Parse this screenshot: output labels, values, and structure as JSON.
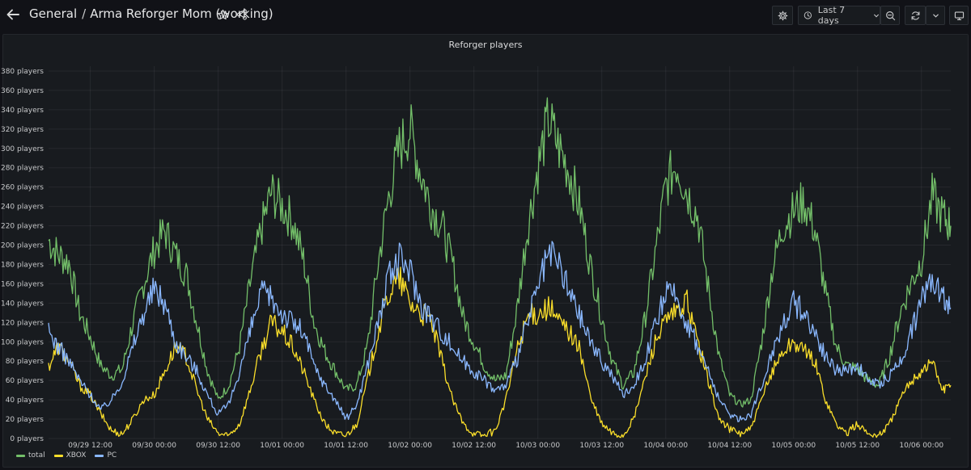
{
  "header": {
    "folder": "General",
    "separator": "/",
    "dashboard_title": "Arma Reforger Mom (working)",
    "time_range_label": "Last 7 days"
  },
  "icons": {
    "back": "arrow-left-icon",
    "star": "star-icon",
    "share": "share-icon",
    "settings": "gear-icon",
    "clock": "clock-icon",
    "time_dropdown": "chevron-down-icon",
    "zoom_out": "zoom-out-icon",
    "refresh": "refresh-icon",
    "refresh_dropdown": "chevron-down-icon",
    "tv_mode": "monitor-icon"
  },
  "colors": {
    "total": "#73bf69",
    "xbox": "#fade2a",
    "pc": "#8ab8ff"
  },
  "chart_data": {
    "type": "line",
    "title": "Reforger players",
    "y_unit": "players",
    "ylim": [
      0,
      385
    ],
    "y_ticks": [
      0,
      20,
      40,
      60,
      80,
      100,
      120,
      140,
      160,
      180,
      200,
      220,
      240,
      260,
      280,
      300,
      320,
      340,
      360,
      380
    ],
    "y_tick_labels": [
      "0 players",
      "20 players",
      "40 players",
      "60 players",
      "80 players",
      "100 players",
      "120 players",
      "140 players",
      "160 players",
      "180 players",
      "200 players",
      "220 players",
      "240 players",
      "260 players",
      "280 players",
      "300 players",
      "320 players",
      "340 players",
      "360 players",
      "380 players"
    ],
    "x_range": [
      "2023-09-29 04:10",
      "2023-10-06 05:30"
    ],
    "x_ticks": [
      "2023-09-29 12:00",
      "2023-09-30 00:00",
      "2023-09-30 12:00",
      "2023-10-01 00:00",
      "2023-10-01 12:00",
      "2023-10-02 00:00",
      "2023-10-02 12:00",
      "2023-10-03 00:00",
      "2023-10-03 12:00",
      "2023-10-04 00:00",
      "2023-10-04 12:00",
      "2023-10-05 00:00",
      "2023-10-05 12:00",
      "2023-10-06 00:00"
    ],
    "x_tick_labels": [
      "09/29 12:00",
      "09/30 00:00",
      "09/30 12:00",
      "10/01 00:00",
      "10/01 12:00",
      "10/02 00:00",
      "10/02 12:00",
      "10/03 00:00",
      "10/03 12:00",
      "10/04 00:00",
      "10/04 12:00",
      "10/05 00:00",
      "10/05 12:00",
      "10/06 00:00"
    ],
    "grid": true,
    "legend_position": "bottom-left",
    "series": [
      {
        "name": "total",
        "x": [
          "2023-09-29 04:10",
          "2023-09-29 06:00",
          "2023-09-29 08:00",
          "2023-09-29 10:00",
          "2023-09-29 12:00",
          "2023-09-29 14:00",
          "2023-09-29 16:00",
          "2023-09-29 18:00",
          "2023-09-29 20:00",
          "2023-09-29 22:00",
          "2023-09-30 00:00",
          "2023-09-30 02:00",
          "2023-09-30 04:00",
          "2023-09-30 06:00",
          "2023-09-30 08:00",
          "2023-09-30 10:00",
          "2023-09-30 12:00",
          "2023-09-30 14:00",
          "2023-09-30 16:00",
          "2023-09-30 18:00",
          "2023-09-30 20:00",
          "2023-09-30 22:00",
          "2023-10-01 00:00",
          "2023-10-01 02:00",
          "2023-10-01 04:00",
          "2023-10-01 06:00",
          "2023-10-01 08:00",
          "2023-10-01 10:00",
          "2023-10-01 12:00",
          "2023-10-01 14:00",
          "2023-10-01 16:00",
          "2023-10-01 18:00",
          "2023-10-01 20:00",
          "2023-10-01 22:00",
          "2023-10-02 00:00",
          "2023-10-02 02:00",
          "2023-10-02 04:00",
          "2023-10-02 06:00",
          "2023-10-02 08:00",
          "2023-10-02 10:00",
          "2023-10-02 12:00",
          "2023-10-02 14:00",
          "2023-10-02 16:00",
          "2023-10-02 18:00",
          "2023-10-02 20:00",
          "2023-10-02 22:00",
          "2023-10-03 00:00",
          "2023-10-03 02:00",
          "2023-10-03 04:00",
          "2023-10-03 06:00",
          "2023-10-03 08:00",
          "2023-10-03 10:00",
          "2023-10-03 12:00",
          "2023-10-03 14:00",
          "2023-10-03 16:00",
          "2023-10-03 18:00",
          "2023-10-03 20:00",
          "2023-10-03 22:00",
          "2023-10-04 00:00",
          "2023-10-04 02:00",
          "2023-10-04 04:00",
          "2023-10-04 06:00",
          "2023-10-04 08:00",
          "2023-10-04 10:00",
          "2023-10-04 12:00",
          "2023-10-04 14:00",
          "2023-10-04 16:00",
          "2023-10-04 18:00",
          "2023-10-04 20:00",
          "2023-10-04 22:00",
          "2023-10-05 00:00",
          "2023-10-05 02:00",
          "2023-10-05 04:00",
          "2023-10-05 06:00",
          "2023-10-05 08:00",
          "2023-10-05 10:00",
          "2023-10-05 12:00",
          "2023-10-05 14:00",
          "2023-10-05 16:00",
          "2023-10-05 18:00",
          "2023-10-05 20:00",
          "2023-10-05 22:00",
          "2023-10-06 00:00",
          "2023-10-06 02:00",
          "2023-10-06 04:00",
          "2023-10-06 05:30"
        ],
        "values": [
          205,
          190,
          182,
          130,
          105,
          75,
          65,
          72,
          120,
          160,
          195,
          215,
          190,
          170,
          120,
          70,
          40,
          55,
          95,
          160,
          215,
          255,
          240,
          225,
          185,
          120,
          90,
          70,
          50,
          55,
          95,
          180,
          250,
          300,
          320,
          275,
          240,
          220,
          180,
          125,
          100,
          75,
          60,
          65,
          130,
          215,
          280,
          330,
          300,
          275,
          235,
          175,
          125,
          80,
          55,
          68,
          120,
          190,
          260,
          285,
          255,
          230,
          155,
          85,
          45,
          35,
          40,
          100,
          175,
          220,
          235,
          245,
          215,
          150,
          95,
          75,
          72,
          60,
          55,
          85,
          130,
          160,
          185,
          250,
          230,
          220
        ]
      },
      {
        "name": "XBOX",
        "x": [
          "2023-09-29 04:10",
          "2023-09-29 06:00",
          "2023-09-29 08:00",
          "2023-09-29 10:00",
          "2023-09-29 12:00",
          "2023-09-29 14:00",
          "2023-09-29 16:00",
          "2023-09-29 18:00",
          "2023-09-29 20:00",
          "2023-09-29 22:00",
          "2023-09-30 00:00",
          "2023-09-30 02:00",
          "2023-09-30 04:00",
          "2023-09-30 06:00",
          "2023-09-30 08:00",
          "2023-09-30 10:00",
          "2023-09-30 12:00",
          "2023-09-30 14:00",
          "2023-09-30 16:00",
          "2023-09-30 18:00",
          "2023-09-30 20:00",
          "2023-09-30 22:00",
          "2023-10-01 00:00",
          "2023-10-01 02:00",
          "2023-10-01 04:00",
          "2023-10-01 06:00",
          "2023-10-01 08:00",
          "2023-10-01 10:00",
          "2023-10-01 12:00",
          "2023-10-01 14:00",
          "2023-10-01 16:00",
          "2023-10-01 18:00",
          "2023-10-01 20:00",
          "2023-10-01 22:00",
          "2023-10-02 00:00",
          "2023-10-02 02:00",
          "2023-10-02 04:00",
          "2023-10-02 06:00",
          "2023-10-02 08:00",
          "2023-10-02 10:00",
          "2023-10-02 12:00",
          "2023-10-02 14:00",
          "2023-10-02 16:00",
          "2023-10-02 18:00",
          "2023-10-02 20:00",
          "2023-10-02 22:00",
          "2023-10-03 00:00",
          "2023-10-03 02:00",
          "2023-10-03 04:00",
          "2023-10-03 06:00",
          "2023-10-03 08:00",
          "2023-10-03 10:00",
          "2023-10-03 12:00",
          "2023-10-03 14:00",
          "2023-10-03 16:00",
          "2023-10-03 18:00",
          "2023-10-03 20:00",
          "2023-10-03 22:00",
          "2023-10-04 00:00",
          "2023-10-04 02:00",
          "2023-10-04 04:00",
          "2023-10-04 06:00",
          "2023-10-04 08:00",
          "2023-10-04 10:00",
          "2023-10-04 12:00",
          "2023-10-04 14:00",
          "2023-10-04 16:00",
          "2023-10-04 18:00",
          "2023-10-04 20:00",
          "2023-10-04 22:00",
          "2023-10-05 00:00",
          "2023-10-05 02:00",
          "2023-10-05 04:00",
          "2023-10-05 06:00",
          "2023-10-05 08:00",
          "2023-10-05 10:00",
          "2023-10-05 12:00",
          "2023-10-05 14:00",
          "2023-10-05 16:00",
          "2023-10-05 18:00",
          "2023-10-05 20:00",
          "2023-10-05 22:00",
          "2023-10-06 00:00",
          "2023-10-06 02:00",
          "2023-10-06 04:00",
          "2023-10-06 05:30"
        ],
        "values": [
          75,
          95,
          80,
          55,
          45,
          25,
          8,
          5,
          20,
          40,
          45,
          70,
          95,
          85,
          50,
          20,
          5,
          3,
          15,
          50,
          90,
          120,
          110,
          95,
          70,
          40,
          15,
          5,
          3,
          15,
          60,
          110,
          150,
          165,
          140,
          130,
          120,
          80,
          40,
          15,
          5,
          3,
          8,
          40,
          90,
          125,
          130,
          135,
          120,
          110,
          90,
          40,
          15,
          5,
          3,
          20,
          60,
          100,
          120,
          130,
          140,
          100,
          60,
          20,
          10,
          5,
          10,
          40,
          70,
          90,
          100,
          90,
          80,
          40,
          15,
          5,
          15,
          5,
          3,
          15,
          40,
          60,
          70,
          80,
          50,
          55
        ]
      },
      {
        "name": "PC",
        "x": [
          "2023-09-29 04:10",
          "2023-09-29 06:00",
          "2023-09-29 08:00",
          "2023-09-29 10:00",
          "2023-09-29 12:00",
          "2023-09-29 14:00",
          "2023-09-29 16:00",
          "2023-09-29 18:00",
          "2023-09-29 20:00",
          "2023-09-29 22:00",
          "2023-09-30 00:00",
          "2023-09-30 02:00",
          "2023-09-30 04:00",
          "2023-09-30 06:00",
          "2023-09-30 08:00",
          "2023-09-30 10:00",
          "2023-09-30 12:00",
          "2023-09-30 14:00",
          "2023-09-30 16:00",
          "2023-09-30 18:00",
          "2023-09-30 20:00",
          "2023-09-30 22:00",
          "2023-10-01 00:00",
          "2023-10-01 02:00",
          "2023-10-01 04:00",
          "2023-10-01 06:00",
          "2023-10-01 08:00",
          "2023-10-01 10:00",
          "2023-10-01 12:00",
          "2023-10-01 14:00",
          "2023-10-01 16:00",
          "2023-10-01 18:00",
          "2023-10-01 20:00",
          "2023-10-01 22:00",
          "2023-10-02 00:00",
          "2023-10-02 02:00",
          "2023-10-02 04:00",
          "2023-10-02 06:00",
          "2023-10-02 08:00",
          "2023-10-02 10:00",
          "2023-10-02 12:00",
          "2023-10-02 14:00",
          "2023-10-02 16:00",
          "2023-10-02 18:00",
          "2023-10-02 20:00",
          "2023-10-02 22:00",
          "2023-10-03 00:00",
          "2023-10-03 02:00",
          "2023-10-03 04:00",
          "2023-10-03 06:00",
          "2023-10-03 08:00",
          "2023-10-03 10:00",
          "2023-10-03 12:00",
          "2023-10-03 14:00",
          "2023-10-03 16:00",
          "2023-10-03 18:00",
          "2023-10-03 20:00",
          "2023-10-03 22:00",
          "2023-10-04 00:00",
          "2023-10-04 02:00",
          "2023-10-04 04:00",
          "2023-10-04 06:00",
          "2023-10-04 08:00",
          "2023-10-04 10:00",
          "2023-10-04 12:00",
          "2023-10-04 14:00",
          "2023-10-04 16:00",
          "2023-10-04 18:00",
          "2023-10-04 20:00",
          "2023-10-04 22:00",
          "2023-10-05 00:00",
          "2023-10-05 02:00",
          "2023-10-05 04:00",
          "2023-10-05 06:00",
          "2023-10-05 08:00",
          "2023-10-05 10:00",
          "2023-10-05 12:00",
          "2023-10-05 14:00",
          "2023-10-05 16:00",
          "2023-10-05 18:00",
          "2023-10-05 20:00",
          "2023-10-05 22:00",
          "2023-10-06 00:00",
          "2023-10-06 02:00",
          "2023-10-06 04:00",
          "2023-10-06 05:30"
        ],
        "values": [
          110,
          95,
          80,
          60,
          45,
          30,
          40,
          60,
          95,
          130,
          155,
          140,
          100,
          85,
          70,
          45,
          25,
          35,
          70,
          110,
          150,
          145,
          130,
          120,
          110,
          75,
          55,
          40,
          20,
          35,
          75,
          120,
          165,
          185,
          175,
          140,
          125,
          110,
          95,
          80,
          70,
          60,
          50,
          55,
          80,
          120,
          155,
          190,
          180,
          150,
          125,
          100,
          80,
          65,
          45,
          55,
          80,
          115,
          150,
          145,
          120,
          95,
          70,
          40,
          25,
          20,
          25,
          55,
          90,
          120,
          140,
          130,
          110,
          85,
          70,
          70,
          75,
          60,
          55,
          65,
          80,
          110,
          140,
          170,
          150,
          135
        ]
      }
    ]
  }
}
